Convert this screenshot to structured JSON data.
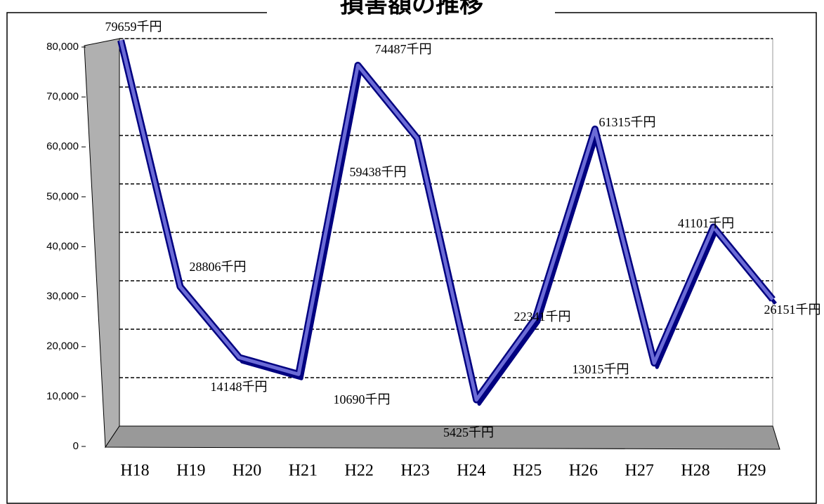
{
  "chart_data": {
    "type": "line",
    "title": "損害額の推移",
    "categories": [
      "H18",
      "H19",
      "H20",
      "H21",
      "H22",
      "H23",
      "H24",
      "H25",
      "H26",
      "H27",
      "H28",
      "H29"
    ],
    "series": [
      {
        "name": "損害額",
        "color": "#6b6bd6",
        "values": [
          79659,
          28806,
          14148,
          10690,
          74487,
          59438,
          5425,
          22341,
          61315,
          13015,
          41101,
          26151
        ],
        "value_labels": [
          "79659千円",
          "28806千円",
          "14148千円",
          "10690千円",
          "74487千円",
          "59438千円",
          "5425千円",
          "22341千円",
          "61315千円",
          "13015千円",
          "41101千円",
          "26151千円"
        ]
      }
    ],
    "ylim": [
      0,
      80000
    ],
    "yticks": [
      0,
      {
        "value": 10000,
        "label": "10,000"
      },
      {
        "value": 20000,
        "label": "20,000"
      },
      {
        "value": 30000,
        "label": "30,000"
      },
      {
        "value": 40000,
        "label": "40,000"
      },
      {
        "value": 50000,
        "label": "50,000"
      },
      {
        "value": 60000,
        "label": "60,000"
      },
      {
        "value": 70000,
        "label": "70,000"
      },
      {
        "value": 80000,
        "label": "80,000"
      }
    ],
    "grid": true
  }
}
